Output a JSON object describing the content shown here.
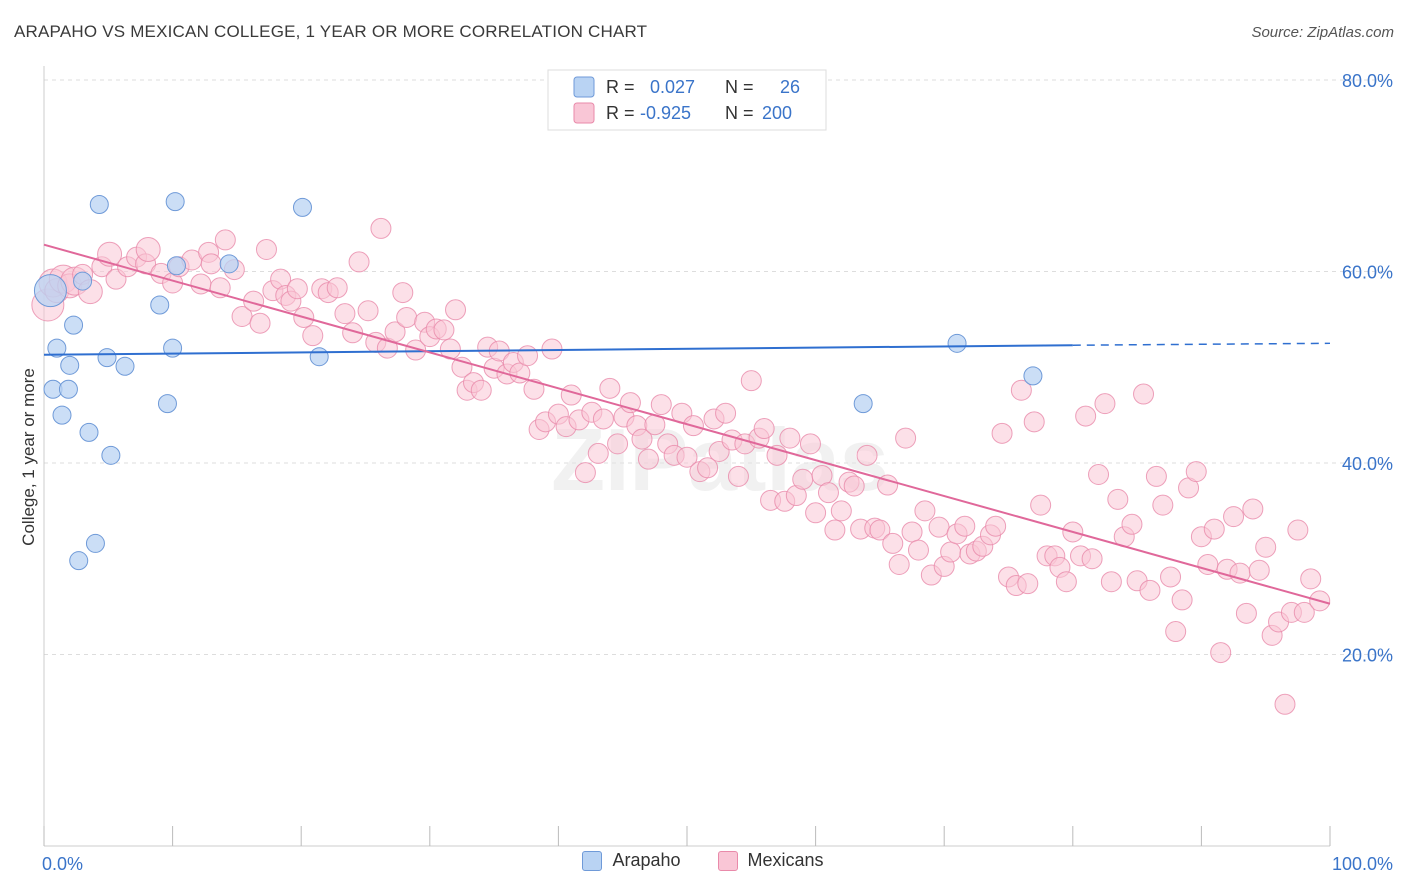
{
  "header": {
    "title": "ARAPAHO VS MEXICAN COLLEGE, 1 YEAR OR MORE CORRELATION CHART",
    "source": "Source: ZipAtlas.com"
  },
  "legend_top": {
    "rows": [
      {
        "r_label": "R =",
        "r_value": "0.027",
        "n_label": "N =",
        "n_value": "26"
      },
      {
        "r_label": "R =",
        "r_value": "-0.925",
        "n_label": "N =",
        "n_value": "200"
      }
    ]
  },
  "legend_bottom": {
    "items": [
      {
        "label": "Arapaho"
      },
      {
        "label": "Mexicans"
      }
    ]
  },
  "watermark": {
    "text": "ZIPatlas"
  },
  "colors": {
    "arapaho_fill": "#b9d3f3",
    "arapaho_stroke": "#6f9ad8",
    "arapaho_line": "#2f6fd0",
    "mexicans_fill": "#f9c6d6",
    "mexicans_stroke": "#e98aaa",
    "mexicans_line": "#e0689a",
    "tick_label": "#3a74c9",
    "grid": "#dddddd"
  },
  "chart_data": {
    "type": "scatter",
    "title": "ARAPAHO VS MEXICAN COLLEGE, 1 YEAR OR MORE CORRELATION CHART",
    "xlabel": "",
    "ylabel": "College, 1 year or more",
    "xlim": [
      0,
      100
    ],
    "ylim": [
      0,
      80
    ],
    "x_tick_labels": [
      "0.0%",
      "100.0%"
    ],
    "y_ticks": [
      20,
      40,
      60,
      80
    ],
    "y_tick_labels": [
      "20.0%",
      "40.0%",
      "60.0%",
      "80.0%"
    ],
    "grid": true,
    "legend_position": "top-center",
    "series": [
      {
        "name": "Arapaho",
        "R": 0.027,
        "N": 26,
        "trend": {
          "x0": 0,
          "y0": 51.3,
          "x1": 80,
          "y1": 52.3,
          "dashed_to_x": 100,
          "dashed_to_y": 52.5
        },
        "points": [
          [
            0.5,
            58.0,
            16
          ],
          [
            1.0,
            52.0,
            9
          ],
          [
            0.7,
            47.7,
            9
          ],
          [
            1.4,
            45.0,
            9
          ],
          [
            1.9,
            47.7,
            9
          ],
          [
            2.0,
            50.2,
            9
          ],
          [
            2.3,
            54.4,
            9
          ],
          [
            3.5,
            43.2,
            9
          ],
          [
            4.3,
            67.0,
            9
          ],
          [
            4.9,
            51.0,
            9
          ],
          [
            5.2,
            40.8,
            9
          ],
          [
            6.3,
            50.1,
            9
          ],
          [
            4.0,
            31.6,
            9
          ],
          [
            2.7,
            29.8,
            9
          ],
          [
            9.0,
            56.5,
            9
          ],
          [
            10.2,
            67.3,
            9
          ],
          [
            9.6,
            46.2,
            9
          ],
          [
            10.0,
            52.0,
            9
          ],
          [
            10.3,
            60.6,
            9
          ],
          [
            14.4,
            60.8,
            9
          ],
          [
            20.1,
            66.7,
            9
          ],
          [
            21.4,
            51.1,
            9
          ],
          [
            71.0,
            52.5,
            9
          ],
          [
            76.9,
            49.1,
            9
          ],
          [
            63.7,
            46.2,
            9
          ],
          [
            3.0,
            59.0,
            9
          ]
        ]
      },
      {
        "name": "Mexicans",
        "R": -0.925,
        "N": 200,
        "trend": {
          "x0": 0,
          "y0": 62.8,
          "x1": 100,
          "y1": 25.3
        },
        "points": [
          [
            0.3,
            56.5,
            16
          ],
          [
            0.7,
            58.8,
            14
          ],
          [
            1.0,
            58.0,
            12
          ],
          [
            1.5,
            59.2,
            14
          ],
          [
            2.0,
            58.5,
            12
          ],
          [
            2.4,
            59.0,
            14
          ],
          [
            3.0,
            59.7,
            10
          ],
          [
            3.6,
            57.9,
            12
          ],
          [
            4.5,
            60.5,
            10
          ],
          [
            5.1,
            61.8,
            12
          ],
          [
            5.6,
            59.2,
            10
          ],
          [
            6.5,
            60.5,
            10
          ],
          [
            7.2,
            61.5,
            10
          ],
          [
            7.9,
            60.8,
            10
          ],
          [
            8.1,
            62.3,
            12
          ],
          [
            9.1,
            59.8,
            10
          ],
          [
            10.0,
            58.8,
            10
          ],
          [
            10.5,
            60.5,
            10
          ],
          [
            11.5,
            61.2,
            10
          ],
          [
            12.2,
            58.7,
            10
          ],
          [
            12.8,
            62.0,
            10
          ],
          [
            13.0,
            60.8,
            10
          ],
          [
            13.7,
            58.3,
            10
          ],
          [
            14.1,
            63.3,
            10
          ],
          [
            14.8,
            60.2,
            10
          ],
          [
            15.4,
            55.3,
            10
          ],
          [
            16.3,
            56.9,
            10
          ],
          [
            16.8,
            54.6,
            10
          ],
          [
            17.3,
            62.3,
            10
          ],
          [
            17.8,
            58.0,
            10
          ],
          [
            18.4,
            59.2,
            10
          ],
          [
            18.8,
            57.5,
            10
          ],
          [
            19.2,
            56.9,
            10
          ],
          [
            19.7,
            58.2,
            10
          ],
          [
            20.2,
            55.2,
            10
          ],
          [
            20.9,
            53.3,
            10
          ],
          [
            21.6,
            58.2,
            10
          ],
          [
            22.1,
            57.8,
            10
          ],
          [
            22.8,
            58.3,
            10
          ],
          [
            23.4,
            55.6,
            10
          ],
          [
            24.0,
            53.6,
            10
          ],
          [
            24.5,
            61.0,
            10
          ],
          [
            25.2,
            55.9,
            10
          ],
          [
            25.8,
            52.6,
            10
          ],
          [
            26.2,
            64.5,
            10
          ],
          [
            26.7,
            52.0,
            10
          ],
          [
            27.3,
            53.7,
            10
          ],
          [
            27.9,
            57.8,
            10
          ],
          [
            28.2,
            55.2,
            10
          ],
          [
            28.9,
            51.8,
            10
          ],
          [
            29.6,
            54.7,
            10
          ],
          [
            30.0,
            53.2,
            10
          ],
          [
            30.5,
            54.0,
            10
          ],
          [
            31.1,
            53.9,
            10
          ],
          [
            31.6,
            51.9,
            10
          ],
          [
            32.0,
            56.0,
            10
          ],
          [
            32.5,
            50.0,
            10
          ],
          [
            32.9,
            47.6,
            10
          ],
          [
            33.4,
            48.4,
            10
          ],
          [
            34.0,
            47.6,
            10
          ],
          [
            34.5,
            52.1,
            10
          ],
          [
            35.0,
            49.9,
            10
          ],
          [
            35.4,
            51.7,
            10
          ],
          [
            36.0,
            49.3,
            10
          ],
          [
            36.5,
            50.5,
            10
          ],
          [
            37.0,
            49.4,
            10
          ],
          [
            37.6,
            51.2,
            10
          ],
          [
            38.1,
            47.7,
            10
          ],
          [
            38.5,
            43.5,
            10
          ],
          [
            39.0,
            44.3,
            10
          ],
          [
            39.5,
            51.9,
            10
          ],
          [
            40.0,
            45.1,
            10
          ],
          [
            40.6,
            43.8,
            10
          ],
          [
            41.0,
            47.1,
            10
          ],
          [
            41.6,
            44.5,
            10
          ],
          [
            42.1,
            39.0,
            10
          ],
          [
            42.6,
            45.3,
            10
          ],
          [
            43.1,
            41.0,
            10
          ],
          [
            43.5,
            44.6,
            10
          ],
          [
            44.0,
            47.8,
            10
          ],
          [
            44.6,
            42.0,
            10
          ],
          [
            45.1,
            44.8,
            10
          ],
          [
            45.6,
            46.3,
            10
          ],
          [
            46.1,
            43.9,
            10
          ],
          [
            46.5,
            42.5,
            10
          ],
          [
            47.0,
            40.4,
            10
          ],
          [
            47.5,
            44.0,
            10
          ],
          [
            48.0,
            46.1,
            10
          ],
          [
            48.5,
            42.0,
            10
          ],
          [
            49.0,
            40.8,
            10
          ],
          [
            49.6,
            45.2,
            10
          ],
          [
            50.0,
            40.6,
            10
          ],
          [
            50.5,
            43.9,
            10
          ],
          [
            51.0,
            39.1,
            10
          ],
          [
            51.6,
            39.5,
            10
          ],
          [
            52.1,
            44.6,
            10
          ],
          [
            52.5,
            41.2,
            10
          ],
          [
            53.0,
            45.2,
            10
          ],
          [
            53.5,
            42.4,
            10
          ],
          [
            54.0,
            38.6,
            10
          ],
          [
            54.5,
            42.0,
            10
          ],
          [
            55.0,
            48.6,
            10
          ],
          [
            55.6,
            42.6,
            10
          ],
          [
            56.0,
            43.6,
            10
          ],
          [
            56.5,
            36.1,
            10
          ],
          [
            57.0,
            40.8,
            10
          ],
          [
            57.6,
            36.0,
            10
          ],
          [
            58.0,
            42.6,
            10
          ],
          [
            58.5,
            36.6,
            10
          ],
          [
            59.0,
            38.3,
            10
          ],
          [
            59.6,
            42.0,
            10
          ],
          [
            60.0,
            34.8,
            10
          ],
          [
            60.5,
            38.7,
            10
          ],
          [
            61.0,
            36.9,
            10
          ],
          [
            61.5,
            33.0,
            10
          ],
          [
            62.0,
            35.0,
            10
          ],
          [
            62.6,
            38.0,
            10
          ],
          [
            63.0,
            37.6,
            10
          ],
          [
            63.5,
            33.1,
            10
          ],
          [
            64.0,
            40.8,
            10
          ],
          [
            64.6,
            33.2,
            10
          ],
          [
            65.0,
            33.0,
            10
          ],
          [
            65.6,
            37.7,
            10
          ],
          [
            66.0,
            31.6,
            10
          ],
          [
            66.5,
            29.4,
            10
          ],
          [
            67.0,
            42.6,
            10
          ],
          [
            67.5,
            32.8,
            10
          ],
          [
            68.0,
            30.9,
            10
          ],
          [
            68.5,
            35.0,
            10
          ],
          [
            69.0,
            28.3,
            10
          ],
          [
            69.6,
            33.3,
            10
          ],
          [
            70.0,
            29.2,
            10
          ],
          [
            70.5,
            30.7,
            10
          ],
          [
            71.0,
            32.6,
            10
          ],
          [
            71.6,
            33.4,
            10
          ],
          [
            72.0,
            30.5,
            10
          ],
          [
            72.5,
            30.8,
            10
          ],
          [
            73.0,
            31.3,
            10
          ],
          [
            73.6,
            32.5,
            10
          ],
          [
            74.0,
            33.4,
            10
          ],
          [
            74.5,
            43.1,
            10
          ],
          [
            75.0,
            28.1,
            10
          ],
          [
            75.6,
            27.2,
            10
          ],
          [
            76.0,
            47.6,
            10
          ],
          [
            76.5,
            27.4,
            10
          ],
          [
            77.0,
            44.3,
            10
          ],
          [
            77.5,
            35.6,
            10
          ],
          [
            78.0,
            30.3,
            10
          ],
          [
            78.6,
            30.3,
            10
          ],
          [
            79.0,
            29.1,
            10
          ],
          [
            79.5,
            27.6,
            10
          ],
          [
            80.0,
            32.8,
            10
          ],
          [
            80.6,
            30.3,
            10
          ],
          [
            81.0,
            44.9,
            10
          ],
          [
            81.5,
            30.0,
            10
          ],
          [
            82.0,
            38.8,
            10
          ],
          [
            82.5,
            46.2,
            10
          ],
          [
            83.0,
            27.6,
            10
          ],
          [
            83.5,
            36.2,
            10
          ],
          [
            84.0,
            32.3,
            10
          ],
          [
            84.6,
            33.6,
            10
          ],
          [
            85.0,
            27.7,
            10
          ],
          [
            85.5,
            47.2,
            10
          ],
          [
            86.0,
            26.7,
            10
          ],
          [
            86.5,
            38.6,
            10
          ],
          [
            87.0,
            35.6,
            10
          ],
          [
            87.6,
            28.1,
            10
          ],
          [
            88.0,
            22.4,
            10
          ],
          [
            88.5,
            25.7,
            10
          ],
          [
            89.0,
            37.4,
            10
          ],
          [
            89.6,
            39.1,
            10
          ],
          [
            90.0,
            32.3,
            10
          ],
          [
            90.5,
            29.4,
            10
          ],
          [
            91.0,
            33.1,
            10
          ],
          [
            91.5,
            20.2,
            10
          ],
          [
            92.0,
            28.9,
            10
          ],
          [
            92.5,
            34.4,
            10
          ],
          [
            93.0,
            28.5,
            10
          ],
          [
            93.5,
            24.3,
            10
          ],
          [
            94.0,
            35.2,
            10
          ],
          [
            94.5,
            28.8,
            10
          ],
          [
            95.0,
            31.2,
            10
          ],
          [
            95.5,
            22.0,
            10
          ],
          [
            96.0,
            23.4,
            10
          ],
          [
            96.5,
            14.8,
            10
          ],
          [
            97.0,
            24.4,
            10
          ],
          [
            97.5,
            33.0,
            10
          ],
          [
            98.0,
            24.4,
            10
          ],
          [
            98.5,
            27.9,
            10
          ],
          [
            99.2,
            25.6,
            10
          ]
        ]
      }
    ]
  }
}
